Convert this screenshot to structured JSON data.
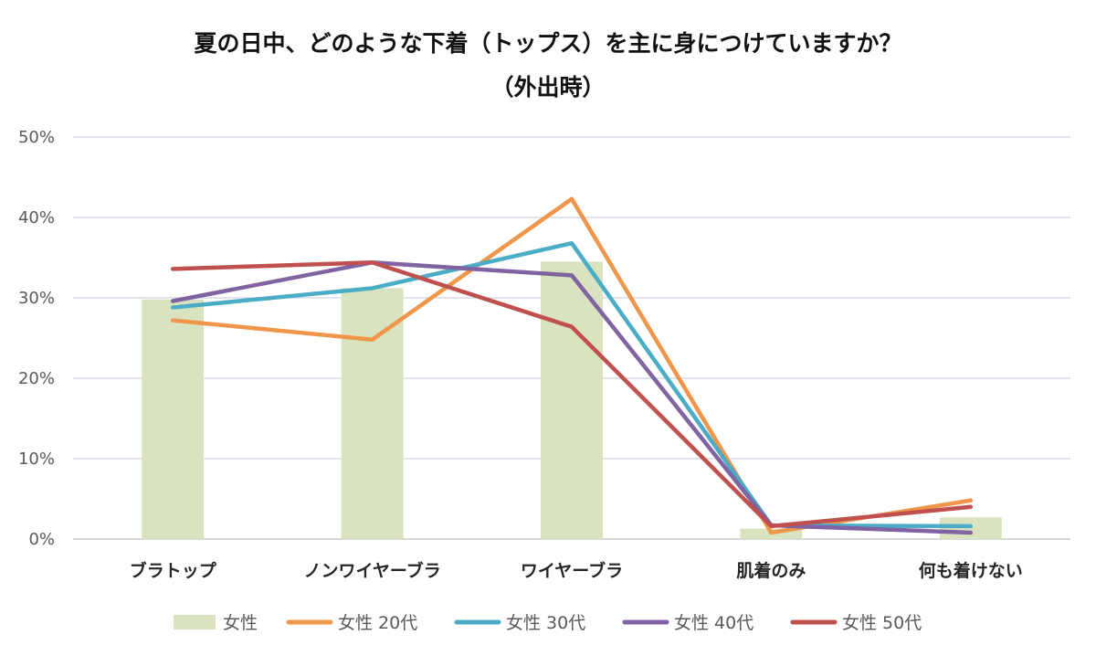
{
  "chart_data": {
    "type": "bar",
    "title": "夏の日中、どのような下着（トップス）を主に身につけていますか？",
    "subtitle": "（外出時）",
    "categories": [
      "ブラトップ",
      "ノンワイヤーブラ",
      "ワイヤーブラ",
      "肌着のみ",
      "何も着けない"
    ],
    "ylim": [
      0,
      50
    ],
    "yticks": [
      "0%",
      "10%",
      "20%",
      "30%",
      "40%",
      "50%"
    ],
    "grid": true,
    "legend_position": "bottom",
    "series": [
      {
        "name": "女性",
        "kind": "bar",
        "color": "#d9e3bf",
        "values": [
          29.8,
          31.2,
          34.5,
          1.3,
          2.7
        ]
      },
      {
        "name": "女性 20代",
        "kind": "line",
        "color": "#f0964a",
        "values": [
          27.2,
          24.8,
          42.3,
          0.8,
          4.8
        ]
      },
      {
        "name": "女性 30代",
        "kind": "line",
        "color": "#4bacc6",
        "values": [
          28.8,
          31.2,
          36.8,
          1.7,
          1.6
        ]
      },
      {
        "name": "女性 40代",
        "kind": "line",
        "color": "#8064a2",
        "values": [
          29.6,
          34.4,
          32.8,
          1.7,
          0.8
        ]
      },
      {
        "name": "女性 50代",
        "kind": "line",
        "color": "#c0504d",
        "values": [
          33.6,
          34.4,
          26.4,
          1.6,
          4.0
        ]
      }
    ]
  }
}
